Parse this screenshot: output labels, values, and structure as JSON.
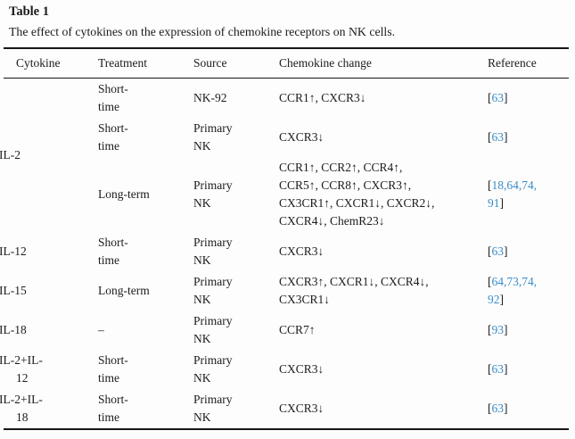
{
  "title": "Table 1",
  "caption": "The effect of cytokines on the expression of chemokine receptors on NK cells.",
  "colors": {
    "background": "#fdfdfd",
    "text": "#1b1b1b",
    "rule": "#161616",
    "citation_link_blue": "#3a8dc8"
  },
  "table": {
    "headers": [
      "Cytokine",
      "Treatment",
      "Source",
      "Chemokine change",
      "Reference"
    ],
    "header_keys": [
      "cytokine",
      "treatment",
      "source",
      "chemokine-change",
      "reference"
    ],
    "groups": [
      {
        "cytokine": "IL-2",
        "rows": [
          {
            "treatment": "Short-\ntime",
            "source": "NK-92",
            "chemokine": "CCR1↑, CXCR3↓",
            "reference": [
              [
                "[",
                "k"
              ],
              [
                "63",
                "b"
              ],
              [
                "]",
                "k"
              ]
            ]
          },
          {
            "treatment": "Short-\ntime",
            "source": "Primary\nNK",
            "chemokine": "CXCR3↓",
            "reference": [
              [
                "[",
                "k"
              ],
              [
                "63",
                "b"
              ],
              [
                "]",
                "k"
              ]
            ]
          },
          {
            "treatment": "Long-term",
            "source": "Primary\nNK",
            "chemokine": "CCR1↑, CCR2↑, CCR4↑,\nCCR5↑, CCR8↑, CXCR3↑,\nCX3CR1↑, CXCR1↓, CXCR2↓,\nCXCR4↓, ChemR23↓",
            "reference": [
              [
                "[",
                "k"
              ],
              [
                "18,64,74,\n91",
                "b"
              ],
              [
                "]",
                "k"
              ]
            ]
          }
        ]
      },
      {
        "cytokine": "IL-12",
        "rows": [
          {
            "treatment": "Short-\ntime",
            "source": "Primary\nNK",
            "chemokine": "CXCR3↓",
            "reference": [
              [
                "[",
                "k"
              ],
              [
                "63",
                "b"
              ],
              [
                "]",
                "k"
              ]
            ]
          }
        ]
      },
      {
        "cytokine": "IL-15",
        "rows": [
          {
            "treatment": "Long-term",
            "source": "Primary\nNK",
            "chemokine": "CXCR3↑, CXCR1↓, CXCR4↓,\nCX3CR1↓",
            "reference": [
              [
                "[",
                "k"
              ],
              [
                "64,73,74,\n92",
                "b"
              ],
              [
                "]",
                "k"
              ]
            ]
          }
        ]
      },
      {
        "cytokine": "IL-18",
        "rows": [
          {
            "treatment": "–",
            "source": "Primary\nNK",
            "chemokine": "CCR7↑",
            "reference": [
              [
                "[",
                "k"
              ],
              [
                "93",
                "b"
              ],
              [
                "]",
                "k"
              ]
            ]
          }
        ]
      },
      {
        "cytokine": "IL-2+IL-\n12",
        "rows": [
          {
            "treatment": "Short-\ntime",
            "source": "Primary\nNK",
            "chemokine": "CXCR3↓",
            "reference": [
              [
                "[",
                "k"
              ],
              [
                "63",
                "b"
              ],
              [
                "]",
                "k"
              ]
            ]
          }
        ]
      },
      {
        "cytokine": "IL-2+IL-\n18",
        "rows": [
          {
            "treatment": "Short-\ntime",
            "source": "Primary\nNK",
            "chemokine": "CXCR3↓",
            "reference": [
              [
                "[",
                "k"
              ],
              [
                "63",
                "b"
              ],
              [
                "]",
                "k"
              ]
            ]
          }
        ]
      }
    ]
  }
}
